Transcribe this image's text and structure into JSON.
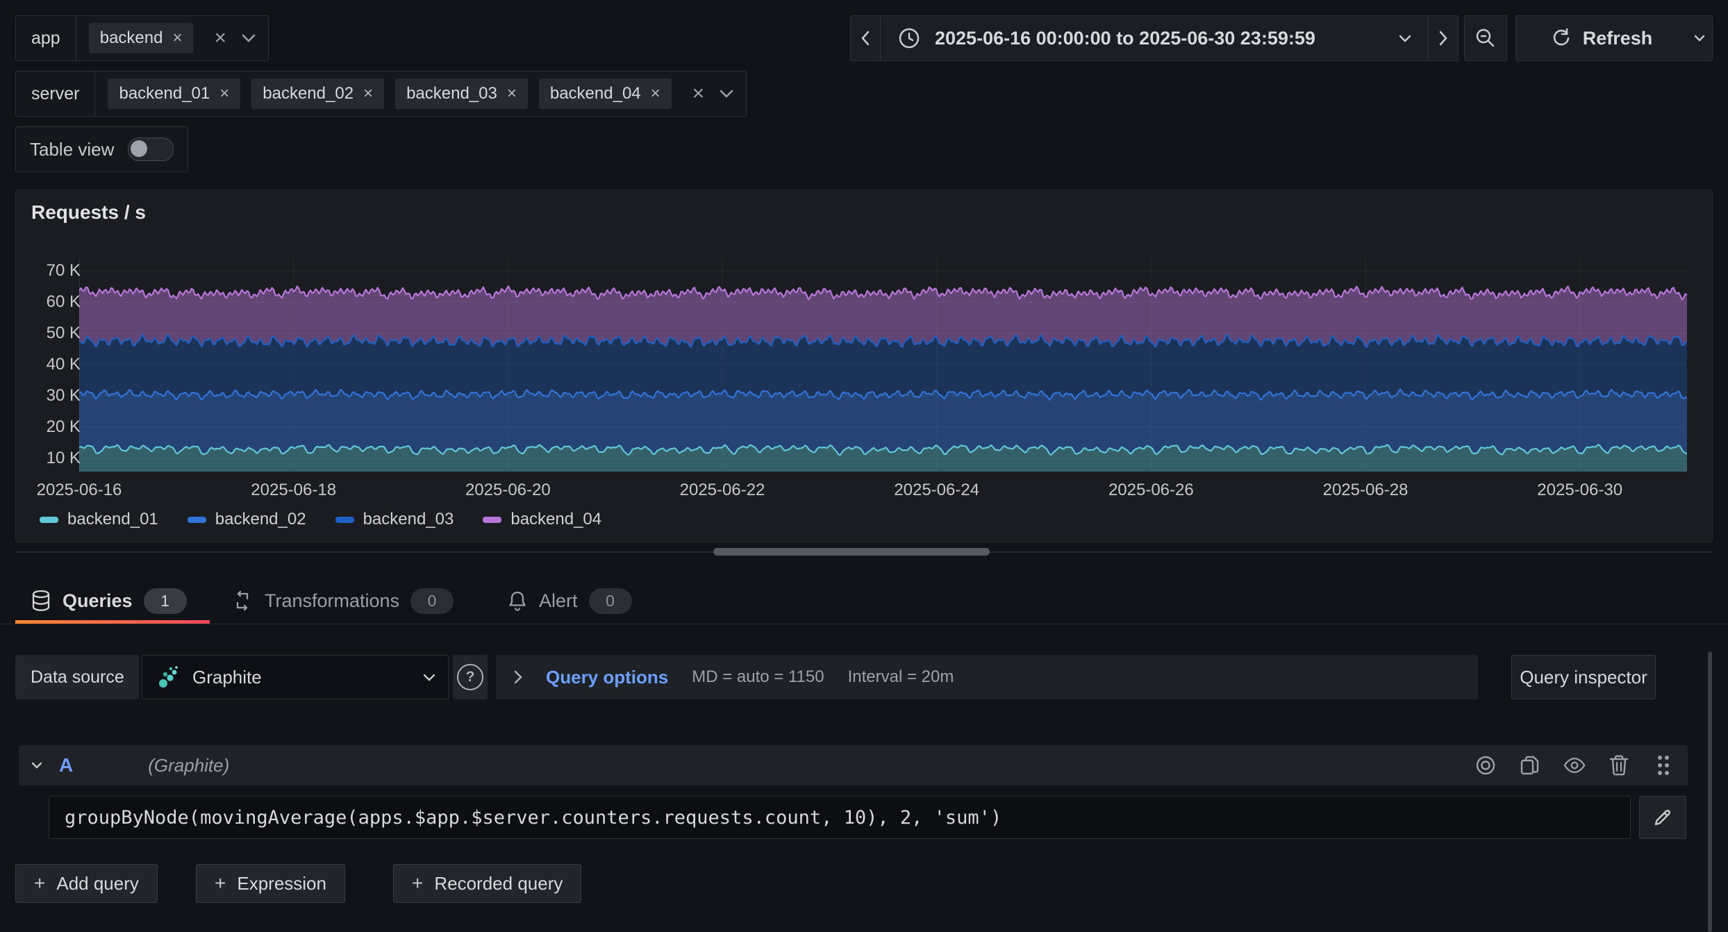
{
  "colors": {
    "link_blue": "#6E9FFF",
    "accent_orange": "#FF8833",
    "accent_red": "#F2495C"
  },
  "icons": {
    "remove": "×",
    "plus": "+",
    "help": "?"
  },
  "filters": {
    "app": {
      "label": "app",
      "values": [
        "backend"
      ]
    },
    "server": {
      "label": "server",
      "values": [
        "backend_01",
        "backend_02",
        "backend_03",
        "backend_04"
      ]
    }
  },
  "table_view": {
    "label": "Table view",
    "enabled": false
  },
  "time_picker": {
    "range": "2025-06-16 00:00:00 to 2025-06-30 23:59:59",
    "refresh_label": "Refresh"
  },
  "panel": {
    "title": "Requests / s"
  },
  "chart_data": {
    "type": "area",
    "stacked": true,
    "title": "Requests / s",
    "x_ticks": [
      "2025-06-16",
      "2025-06-18",
      "2025-06-20",
      "2025-06-22",
      "2025-06-24",
      "2025-06-26",
      "2025-06-28",
      "2025-06-30"
    ],
    "x_range_days": 15,
    "y_ticks": [
      "10 K",
      "20 K",
      "30 K",
      "40 K",
      "50 K",
      "60 K",
      "70 K"
    ],
    "ylim": [
      5800,
      74200
    ],
    "grid": true,
    "legend_position": "bottom-left",
    "series": [
      {
        "name": "backend_01",
        "color": "#62C8D8",
        "fill_opacity": 0.4,
        "mean": 13000,
        "amplitude": 2100
      },
      {
        "name": "backend_02",
        "color": "#3274D9",
        "fill_opacity": 0.45,
        "mean": 17500,
        "amplitude": 1700
      },
      {
        "name": "backend_03",
        "color": "#1F60C4",
        "fill_opacity": 0.34,
        "mean": 17000,
        "amplitude": 1700
      },
      {
        "name": "backend_04",
        "color": "#B877D9",
        "fill_opacity": 0.45,
        "mean": 15500,
        "amplitude": 2600
      }
    ],
    "waveform": {
      "days": 15,
      "points_per_day": 64,
      "cycles_per_day": 4.05,
      "modulation_cycles_per_day": 1.0
    }
  },
  "tabs": [
    {
      "label": "Queries",
      "count": "1",
      "active": true
    },
    {
      "label": "Transformations",
      "count": "0",
      "active": false
    },
    {
      "label": "Alert",
      "count": "0",
      "active": false
    }
  ],
  "query_editor": {
    "datasource_label": "Data source",
    "datasource_name": "Graphite",
    "options_label": "Query options",
    "options_md": "MD = auto = 1150",
    "options_interval": "Interval = 20m",
    "inspector_label": "Query inspector",
    "row": {
      "ref_id": "A",
      "subtitle": "(Graphite)",
      "query": "groupByNode(movingAverage(apps.$app.$server.counters.requests.count, 10), 2, 'sum')"
    },
    "buttons": [
      {
        "label": "Add query"
      },
      {
        "label": "Expression"
      },
      {
        "label": "Recorded query"
      }
    ]
  }
}
